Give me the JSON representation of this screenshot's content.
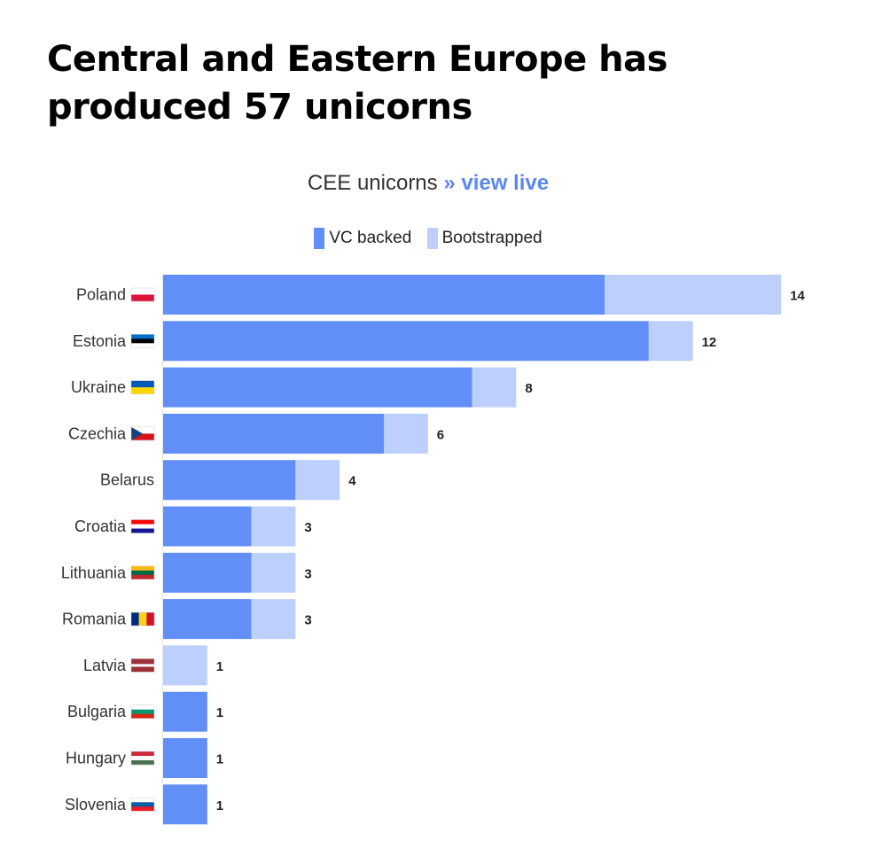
{
  "headline": "Central and Eastern Europe has produced 57 unicorns",
  "subtitle": {
    "text": "CEE unicorns",
    "link_label": "» view live"
  },
  "colors": {
    "vc_backed": "#628ff7",
    "bootstrapped": "#bdcffc",
    "label_text": "#333333",
    "value_text": "#222222",
    "axis": "#e6e6e6"
  },
  "chart_data": {
    "type": "bar",
    "orientation": "horizontal",
    "stacked": true,
    "title": "CEE unicorns",
    "legend_placement": "top",
    "categories": [
      "Poland",
      "Estonia",
      "Ukraine",
      "Czechia",
      "Belarus",
      "Croatia",
      "Lithuania",
      "Romania",
      "Latvia",
      "Bulgaria",
      "Hungary",
      "Slovenia"
    ],
    "series": [
      {
        "name": "VC backed",
        "values": [
          10,
          11,
          7,
          5,
          3,
          2,
          2,
          2,
          0,
          1,
          1,
          1
        ]
      },
      {
        "name": "Bootstrapped",
        "values": [
          4,
          1,
          1,
          1,
          1,
          1,
          1,
          1,
          1,
          0,
          0,
          0
        ]
      }
    ],
    "totals": [
      14,
      12,
      8,
      6,
      4,
      3,
      3,
      3,
      1,
      1,
      1,
      1
    ],
    "xlim": [
      0,
      14
    ],
    "grid": false,
    "flags": [
      {
        "country": "Poland",
        "type": "h",
        "stripes": [
          "#ffffff",
          "#dc143c"
        ]
      },
      {
        "country": "Estonia",
        "type": "h",
        "stripes": [
          "#0072ce",
          "#000000",
          "#ffffff"
        ]
      },
      {
        "country": "Ukraine",
        "type": "h",
        "stripes": [
          "#0057b7",
          "#ffd700"
        ]
      },
      {
        "country": "Czechia",
        "type": "czech",
        "stripes": [
          "#ffffff",
          "#d7141a",
          "#11457e"
        ]
      },
      {
        "country": "Belarus",
        "type": "none",
        "stripes": []
      },
      {
        "country": "Croatia",
        "type": "h",
        "stripes": [
          "#ff0000",
          "#ffffff",
          "#171796"
        ]
      },
      {
        "country": "Lithuania",
        "type": "h",
        "stripes": [
          "#fdb913",
          "#006a44",
          "#c1272d"
        ]
      },
      {
        "country": "Romania",
        "type": "v",
        "stripes": [
          "#002b7f",
          "#fcd116",
          "#ce1126"
        ]
      },
      {
        "country": "Latvia",
        "type": "latvia",
        "stripes": [
          "#9e3039",
          "#ffffff",
          "#9e3039"
        ]
      },
      {
        "country": "Bulgaria",
        "type": "h",
        "stripes": [
          "#ffffff",
          "#00966e",
          "#d62612"
        ]
      },
      {
        "country": "Hungary",
        "type": "h",
        "stripes": [
          "#ce2939",
          "#ffffff",
          "#477050"
        ]
      },
      {
        "country": "Slovenia",
        "type": "h",
        "stripes": [
          "#ffffff",
          "#005da4",
          "#ed1c24"
        ]
      }
    ]
  }
}
